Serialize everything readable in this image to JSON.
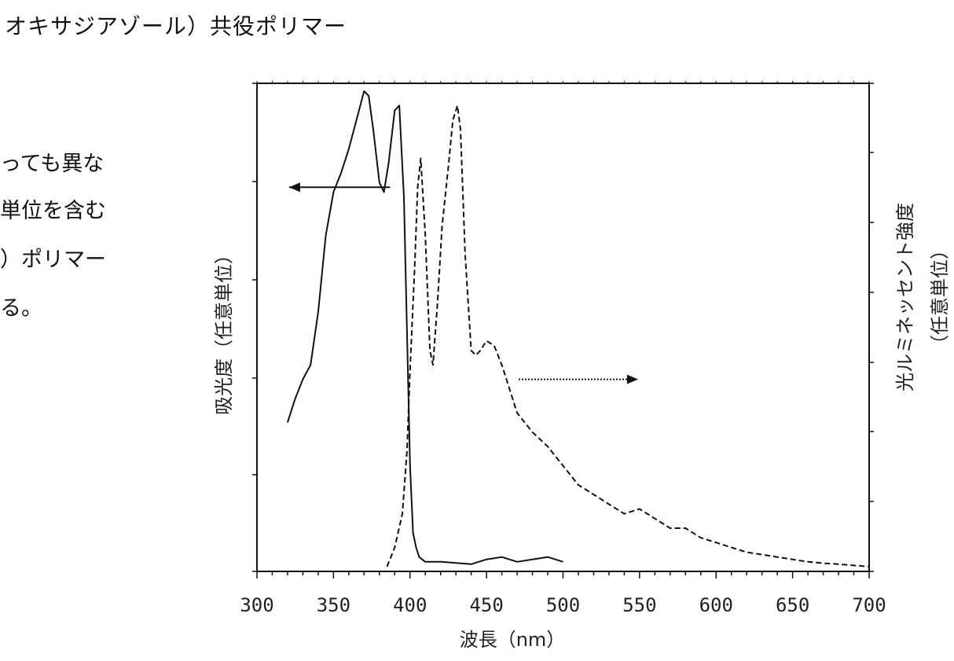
{
  "page": {
    "heading": "オキサジアゾール）共役ポリマー",
    "body_lines": [
      "っても異な",
      "単位を含む",
      "）ポリマー",
      "る。"
    ]
  },
  "chart_data": {
    "type": "line",
    "title": "",
    "xlabel": "波長（nm）",
    "ylabel_left": "吸光度（任意単位）",
    "ylabel_right_1": "光ルミネッセント強度",
    "ylabel_right_2": "（任意単位）",
    "xlim": [
      300,
      700
    ],
    "ylim": [
      0,
      100
    ],
    "x_ticks": [
      "300",
      "350",
      "400",
      "450",
      "500",
      "550",
      "600",
      "650",
      "700"
    ],
    "series": [
      {
        "style": "solid",
        "axis": "left",
        "x": [
          320,
          325,
          330,
          335,
          340,
          345,
          350,
          355,
          360,
          365,
          370,
          373,
          376,
          380,
          383,
          386,
          390,
          393,
          396,
          398,
          400,
          402,
          404,
          406,
          410,
          420,
          440,
          450,
          460,
          470,
          480,
          490,
          500
        ],
        "y": [
          31,
          36,
          40,
          43,
          54,
          70,
          79,
          83,
          88,
          94,
          100,
          99,
          92,
          81,
          79,
          85,
          96,
          97,
          78,
          50,
          22,
          8,
          5,
          3,
          2,
          2,
          1.5,
          2.5,
          3,
          2,
          2.5,
          3,
          2
        ]
      },
      {
        "style": "dashed",
        "axis": "right",
        "x": [
          385,
          390,
          395,
          398,
          400,
          403,
          405,
          407,
          410,
          413,
          415,
          418,
          421,
          425,
          428,
          431,
          433,
          436,
          440,
          443,
          446,
          450,
          455,
          460,
          470,
          480,
          490,
          500,
          510,
          520,
          530,
          540,
          550,
          560,
          570,
          580,
          590,
          600,
          610,
          620,
          630,
          640,
          650,
          660,
          670,
          680,
          700
        ],
        "y": [
          1,
          5,
          12,
          25,
          42,
          63,
          80,
          86,
          70,
          46,
          43,
          56,
          72,
          84,
          94,
          97,
          92,
          66,
          46,
          45,
          46,
          48,
          47,
          43,
          33,
          29,
          26,
          22,
          18,
          16,
          14,
          12,
          13,
          11,
          9,
          9,
          7,
          6,
          5,
          4,
          3.5,
          3,
          2.5,
          2,
          1.7,
          1.5,
          1
        ]
      }
    ],
    "annotations": [
      {
        "type": "arrow",
        "direction": "left",
        "points_to_axis": "left",
        "from": [
          387,
          80
        ],
        "to": [
          321,
          80
        ]
      },
      {
        "type": "arrow",
        "direction": "right",
        "points_to_axis": "right",
        "from": [
          471,
          40
        ],
        "to": [
          549,
          40
        ]
      }
    ],
    "grid": false,
    "legend": "none"
  }
}
